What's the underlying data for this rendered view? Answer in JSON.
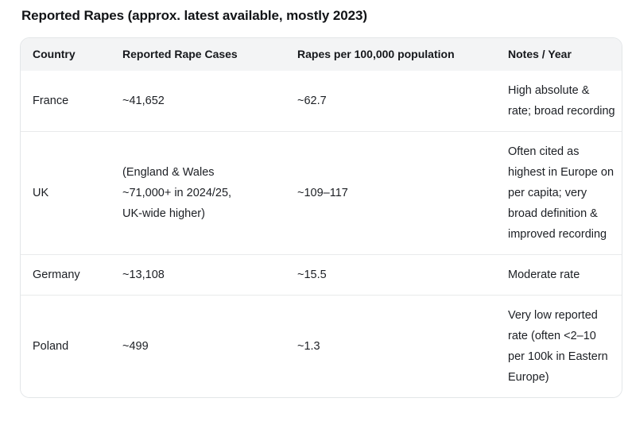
{
  "title": "Reported Rapes (approx. latest available, mostly 2023)",
  "table": {
    "columns": {
      "country": "Country",
      "cases": "Reported Rape Cases",
      "rate": "Rapes per 100,000 population",
      "notes": "Notes / Year"
    },
    "rows": [
      {
        "country": "France",
        "cases": "~41,652",
        "rate": "~62.7",
        "notes": "High absolute & rate; broad recording"
      },
      {
        "country": "UK",
        "cases": "(England & Wales ~71,000+ in 2024/25, UK-wide higher)",
        "rate": "~109–117",
        "notes": "Often cited as highest in Europe on per capita; very broad definition & improved recording"
      },
      {
        "country": "Germany",
        "cases": "~13,108",
        "rate": "~15.5",
        "notes": "Moderate rate"
      },
      {
        "country": "Poland",
        "cases": "~499",
        "rate": "~1.3",
        "notes": "Very low reported rate (often <2–10 per 100k in Eastern Europe)"
      }
    ]
  },
  "colors": {
    "background": "#ffffff",
    "header_background": "#f3f4f5",
    "table_border": "#e3e6e8",
    "row_divider": "#e9eaeb",
    "title_text": "#121417",
    "body_text": "#1c1f24"
  },
  "chart_data": {
    "type": "table",
    "title": "Reported Rapes (approx. latest available, mostly 2023)",
    "columns": [
      "Country",
      "Reported Rape Cases",
      "Rapes per 100,000 population",
      "Notes / Year"
    ],
    "rows": [
      [
        "France",
        "~41,652",
        "~62.7",
        "High absolute & rate; broad recording"
      ],
      [
        "UK",
        "(England & Wales ~71,000+ in 2024/25, UK-wide higher)",
        "~109–117",
        "Often cited as highest in Europe on per capita; very broad definition & improved recording"
      ],
      [
        "Germany",
        "~13,108",
        "~15.5",
        "Moderate rate"
      ],
      [
        "Poland",
        "~499",
        "~1.3",
        "Very low reported rate (often <2–10 per 100k in Eastern Europe)"
      ]
    ]
  }
}
